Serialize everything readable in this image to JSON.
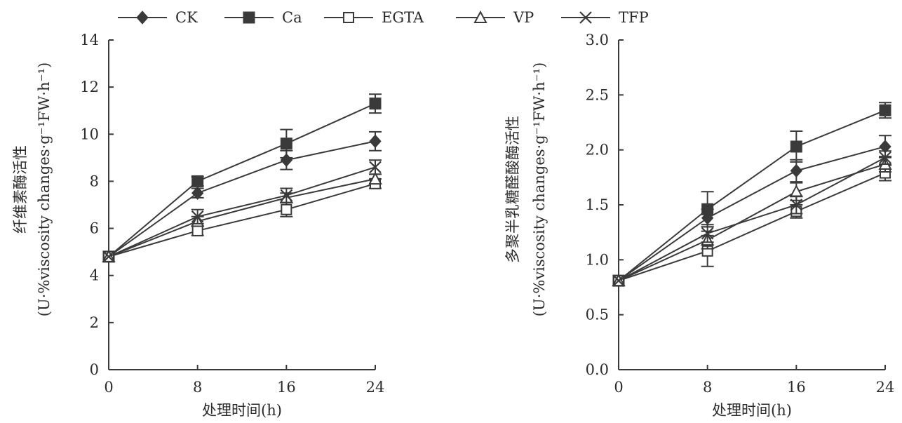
{
  "legend": [
    {
      "name": "CK",
      "marker": "diamond-filled"
    },
    {
      "name": "Ca",
      "marker": "square-filled"
    },
    {
      "name": "EGTA",
      "marker": "square-open"
    },
    {
      "name": "VP",
      "marker": "triangle-open"
    },
    {
      "name": "TFP",
      "marker": "x-cross"
    }
  ],
  "chart_data": [
    {
      "type": "line",
      "title": "",
      "xlabel": "处理时间(h)",
      "ylabel": "纤维素酶活性",
      "ylabel_unit": "(U·%viscosity changes·g⁻¹FW·h⁻¹)",
      "x": [
        0,
        8,
        16,
        24
      ],
      "xlim": [
        0,
        24
      ],
      "ylim": [
        0,
        14
      ],
      "xticks": [
        "0",
        "8",
        "16",
        "24"
      ],
      "yticks": [
        "0",
        "2",
        "4",
        "6",
        "8",
        "10",
        "12",
        "14"
      ],
      "grid": false,
      "series": [
        {
          "name": "CK",
          "marker": "diamond-filled",
          "values": [
            4.8,
            7.5,
            8.9,
            9.7
          ],
          "errors": [
            0.1,
            0.2,
            0.4,
            0.4
          ]
        },
        {
          "name": "Ca",
          "marker": "square-filled",
          "values": [
            4.8,
            8.0,
            9.6,
            11.3
          ],
          "errors": [
            0.1,
            0.2,
            0.6,
            0.4
          ]
        },
        {
          "name": "EGTA",
          "marker": "square-open",
          "values": [
            4.8,
            5.9,
            6.8,
            7.9
          ],
          "errors": [
            0.1,
            0.2,
            0.3,
            0.2
          ]
        },
        {
          "name": "VP",
          "marker": "triangle-open",
          "values": [
            4.8,
            6.3,
            7.3,
            8.1
          ],
          "errors": [
            0.1,
            0.2,
            0.2,
            0.2
          ]
        },
        {
          "name": "TFP",
          "marker": "x-cross",
          "values": [
            4.8,
            6.5,
            7.4,
            8.6
          ],
          "errors": [
            0.1,
            0.3,
            0.3,
            0.3
          ]
        }
      ]
    },
    {
      "type": "line",
      "title": "",
      "xlabel": "处理时间(h)",
      "ylabel": "多聚半乳糖醛酸酶活性",
      "ylabel_unit": "(U·%viscosity changes·g⁻¹FW·h⁻¹)",
      "x": [
        0,
        8,
        16,
        24
      ],
      "xlim": [
        0,
        24
      ],
      "ylim": [
        0,
        3.0
      ],
      "xticks": [
        "0",
        "8",
        "16",
        "24"
      ],
      "yticks": [
        "0.0",
        "0.5",
        "1.0",
        "1.5",
        "2.0",
        "2.5",
        "3.0"
      ],
      "grid": false,
      "series": [
        {
          "name": "CK",
          "marker": "diamond-filled",
          "values": [
            0.81,
            1.38,
            1.81,
            2.03
          ],
          "errors": [
            0.04,
            0.08,
            0.1,
            0.1
          ]
        },
        {
          "name": "Ca",
          "marker": "square-filled",
          "values": [
            0.81,
            1.46,
            2.03,
            2.36
          ],
          "errors": [
            0.04,
            0.16,
            0.14,
            0.07
          ]
        },
        {
          "name": "EGTA",
          "marker": "square-open",
          "values": [
            0.81,
            1.08,
            1.44,
            1.79
          ],
          "errors": [
            0.04,
            0.14,
            0.06,
            0.07
          ]
        },
        {
          "name": "VP",
          "marker": "triangle-open",
          "values": [
            0.81,
            1.18,
            1.62,
            1.87
          ],
          "errors": [
            0.04,
            0.08,
            0.08,
            0.07
          ]
        },
        {
          "name": "TFP",
          "marker": "x-cross",
          "values": [
            0.81,
            1.24,
            1.5,
            1.93
          ],
          "errors": [
            0.04,
            0.08,
            0.08,
            0.06
          ]
        }
      ]
    }
  ]
}
